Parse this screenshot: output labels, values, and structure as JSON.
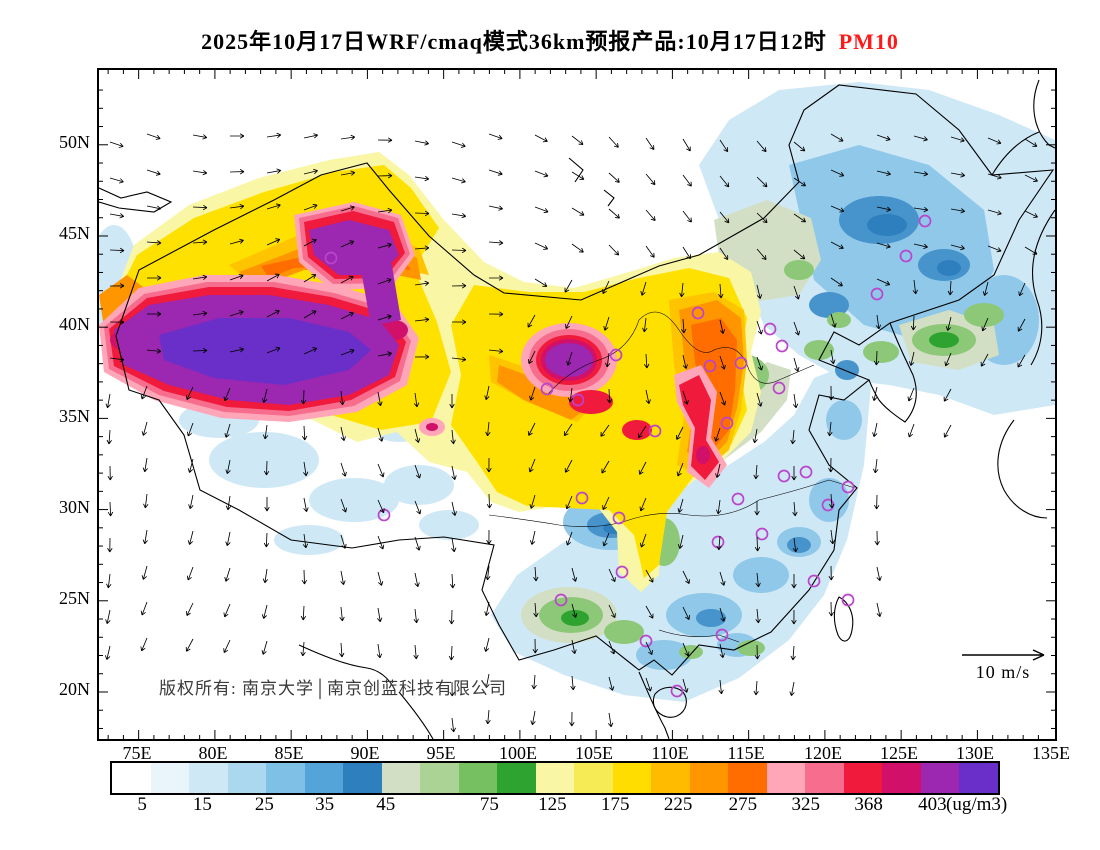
{
  "title": {
    "main": "2025年10月17日WRF/cmaq模式36km预报产品:10月17日12时",
    "pollutant": "PM10",
    "pollutant_color": "#ff1a1a"
  },
  "map": {
    "copyright": "版权所有: 南京大学│南京创蓝科技有限公司",
    "wind_ref_label": "10 m/s",
    "city_marker_color": "#bb44cc"
  },
  "axes": {
    "lat_labels": [
      "50N",
      "45N",
      "40N",
      "35N",
      "30N",
      "25N",
      "20N"
    ],
    "lon_labels": [
      "75E",
      "80E",
      "85E",
      "90E",
      "95E",
      "100E",
      "105E",
      "110E",
      "115E",
      "120E",
      "125E",
      "130E",
      "135E"
    ]
  },
  "colorbar": {
    "unit": "(ug/m3)",
    "labels": [
      "5",
      "15",
      "25",
      "35",
      "45",
      "75",
      "125",
      "175",
      "225",
      "275",
      "325",
      "368",
      "403"
    ],
    "colors": [
      "#ffffff",
      "#e9f4fb",
      "#cfe8f6",
      "#abd7ef",
      "#7fc1e6",
      "#54a4d9",
      "#2e7fbe",
      "#d3dfc4",
      "#aad395",
      "#76c062",
      "#2fa32f",
      "#f9f6a6",
      "#f6ea55",
      "#ffdd00",
      "#ffbb00",
      "#ff9600",
      "#ff6d00",
      "#ffa7b9",
      "#f76d8e",
      "#ef1a3c",
      "#d1106a",
      "#9c27b0",
      "#6b2fc9"
    ]
  }
}
